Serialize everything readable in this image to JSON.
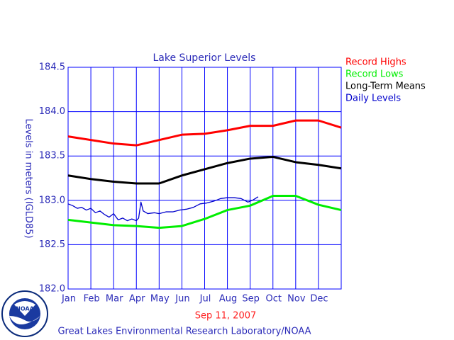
{
  "chart_data": {
    "type": "line",
    "title": "Lake Superior Levels",
    "y_label": "Levels in meters (IGLD85)",
    "date": "Sep 11, 2007",
    "footer": "Great Lakes Environmental Research Laboratory/NOAA",
    "categories": [
      "Jan",
      "Feb",
      "Mar",
      "Apr",
      "May",
      "Jun",
      "Jul",
      "Aug",
      "Sep",
      "Oct",
      "Nov",
      "Dec"
    ],
    "xlim": [
      0,
      12
    ],
    "ylim": [
      182.0,
      184.5
    ],
    "yticks": [
      {
        "value": 182.0,
        "label": "182.0"
      },
      182.5,
      {
        "value": 183.0,
        "label": "183.0"
      },
      183.5,
      {
        "value": 184.0,
        "label": "184.0"
      },
      184.5
    ],
    "grid": true,
    "grid_color": "#0000ff",
    "legend": "upper right",
    "series": [
      {
        "name": "Record Highs",
        "color": "#ff0000",
        "x": [
          0,
          1,
          2,
          3,
          4,
          5,
          6,
          7,
          8,
          9,
          10,
          11,
          12
        ],
        "values": [
          183.72,
          183.68,
          183.64,
          183.62,
          183.68,
          183.74,
          183.75,
          183.79,
          183.84,
          183.84,
          183.9,
          183.9,
          183.82
        ]
      },
      {
        "name": "Record Lows",
        "color": "#00ee00",
        "x": [
          0,
          1,
          2,
          3,
          4,
          5,
          6,
          7,
          8,
          9,
          10,
          11,
          12
        ],
        "values": [
          182.78,
          182.75,
          182.72,
          182.71,
          182.69,
          182.71,
          182.79,
          182.89,
          182.94,
          183.05,
          183.05,
          182.95,
          182.89
        ]
      },
      {
        "name": "Long-Term Means",
        "color": "#000000",
        "x": [
          0,
          1,
          2,
          3,
          4,
          5,
          6,
          7,
          8,
          9,
          10,
          11,
          12
        ],
        "values": [
          183.28,
          183.24,
          183.21,
          183.19,
          183.19,
          183.28,
          183.35,
          183.42,
          183.47,
          183.49,
          183.43,
          183.4,
          183.36
        ]
      },
      {
        "name": "Daily Levels",
        "color": "#0000cc",
        "x": [
          0,
          0.2,
          0.4,
          0.6,
          0.8,
          1.0,
          1.2,
          1.4,
          1.6,
          1.8,
          2.0,
          2.2,
          2.4,
          2.6,
          2.8,
          3.0,
          3.1,
          3.2,
          3.3,
          3.5,
          3.8,
          4.0,
          4.3,
          4.6,
          4.9,
          5.2,
          5.5,
          5.8,
          6.1,
          6.4,
          6.7,
          7.0,
          7.3,
          7.6,
          7.9,
          8.1,
          8.35
        ],
        "values": [
          182.96,
          182.94,
          182.91,
          182.92,
          182.89,
          182.91,
          182.86,
          182.88,
          182.84,
          182.81,
          182.85,
          182.78,
          182.8,
          182.77,
          182.79,
          182.77,
          182.8,
          182.98,
          182.88,
          182.85,
          182.86,
          182.85,
          182.87,
          182.87,
          182.89,
          182.9,
          182.92,
          182.96,
          182.97,
          182.99,
          183.02,
          183.03,
          183.03,
          183.02,
          182.98,
          183.0,
          183.04
        ]
      }
    ]
  }
}
